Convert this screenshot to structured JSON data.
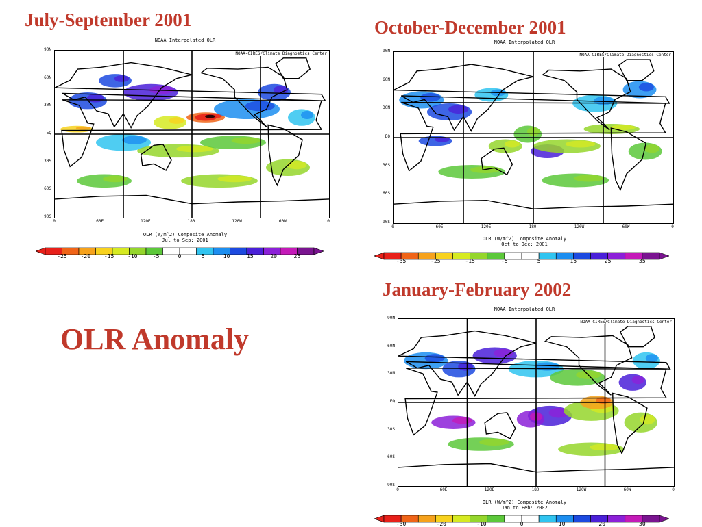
{
  "slide_title": "OLR Anomaly",
  "palette": [
    "#e8201a",
    "#f06418",
    "#f6a21c",
    "#f8d21e",
    "#d6ea22",
    "#95d62c",
    "#5cc83a",
    "#ffffff",
    "#ffffff",
    "#30c4f0",
    "#1c8ef0",
    "#1c4ae0",
    "#4a20d8",
    "#8c20d8",
    "#c41ab8",
    "#7a1490"
  ],
  "panels": [
    {
      "id": "jas",
      "heading": "July-September 2001",
      "map_title": "NOAA Interpolated OLR",
      "credit": "NOAA-CIRES/Climate Diagnostics Center",
      "lat_labels": [
        "90N",
        "60N",
        "30N",
        "EQ",
        "30S",
        "60S",
        "90S"
      ],
      "lon_labels": [
        "0",
        "60E",
        "120E",
        "180",
        "120W",
        "60W",
        "0"
      ],
      "caption_line1": "OLR (W/m^2) Composite Anomaly",
      "caption_line2": "Jul to Sep: 2001",
      "colorbar_ticks": [
        "-25",
        "-20",
        "-15",
        "-10",
        "-5",
        "0",
        "5",
        "10",
        "15",
        "20",
        "25"
      ]
    },
    {
      "id": "ond",
      "heading": "October-December 2001",
      "map_title": "NOAA Interpolated OLR",
      "credit": "NOAA-CIRES/Climate Diagnostics Center",
      "lat_labels": [
        "90N",
        "60N",
        "30N",
        "EQ",
        "30S",
        "60S",
        "90S"
      ],
      "lon_labels": [
        "0",
        "60E",
        "120E",
        "180",
        "120W",
        "60W",
        "0"
      ],
      "caption_line1": "OLR (W/m^2) Composite Anomaly",
      "caption_line2": "Oct to Dec: 2001",
      "colorbar_ticks": [
        "-35",
        "-25",
        "-15",
        "-5",
        "5",
        "15",
        "25",
        "35"
      ]
    },
    {
      "id": "jf",
      "heading": "January-February 2002",
      "map_title": "NOAA Interpolated OLR",
      "credit": "NOAA-CIRES/Climate Diagnostics Center",
      "lat_labels": [
        "90N",
        "60N",
        "30N",
        "EQ",
        "30S",
        "60S",
        "90S"
      ],
      "lon_labels": [
        "0",
        "60E",
        "120E",
        "180",
        "120W",
        "60W",
        "0"
      ],
      "caption_line1": "OLR (W/m^2) Composite Anomaly",
      "caption_line2": "Jan to Feb: 2002",
      "colorbar_ticks": [
        "-30",
        "-20",
        "-10",
        "0",
        "10",
        "20",
        "30"
      ]
    }
  ]
}
